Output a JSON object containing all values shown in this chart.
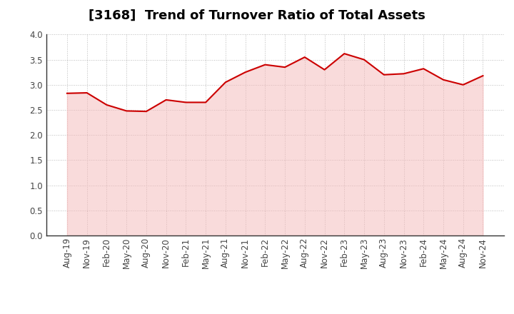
{
  "title": "[3168]  Trend of Turnover Ratio of Total Assets",
  "labels": [
    "Aug-19",
    "Nov-19",
    "Feb-20",
    "May-20",
    "Aug-20",
    "Nov-20",
    "Feb-21",
    "May-21",
    "Aug-21",
    "Nov-21",
    "Feb-22",
    "May-22",
    "Aug-22",
    "Nov-22",
    "Feb-23",
    "May-23",
    "Aug-23",
    "Nov-23",
    "Feb-24",
    "May-24",
    "Aug-24",
    "Nov-24"
  ],
  "values": [
    2.83,
    2.84,
    2.6,
    2.48,
    2.47,
    2.7,
    2.65,
    2.65,
    3.05,
    3.25,
    3.4,
    3.35,
    3.55,
    3.3,
    3.62,
    3.5,
    3.2,
    3.22,
    3.32,
    3.1,
    3.0,
    3.18
  ],
  "line_color": "#cc0000",
  "fill_color": "#f5b8b8",
  "line_width": 1.5,
  "ylim": [
    0.0,
    4.0
  ],
  "yticks": [
    0.0,
    0.5,
    1.0,
    1.5,
    2.0,
    2.5,
    3.0,
    3.5,
    4.0
  ],
  "background_color": "#ffffff",
  "grid_color": "#bbbbbb",
  "title_fontsize": 13,
  "tick_fontsize": 8.5
}
